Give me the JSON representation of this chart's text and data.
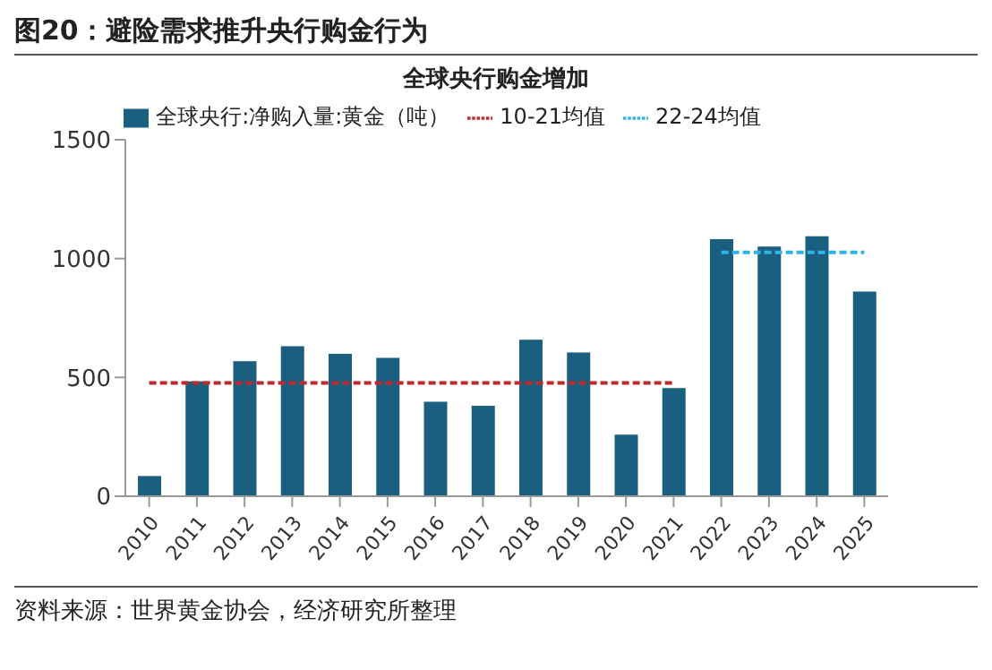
{
  "chart_data": {
    "type": "bar",
    "title": "图20：避险需求推升央行购金行为",
    "subtitle": "全球央行购金增加",
    "categories": [
      "2010",
      "2011",
      "2012",
      "2013",
      "2014",
      "2015",
      "2016",
      "2017",
      "2018",
      "2019",
      "2020",
      "2021",
      "2022",
      "2023",
      "2024",
      "2025"
    ],
    "series": [
      {
        "name": "全球央行:净购入量:黄金（吨）",
        "color": "#1a5e80",
        "values": [
          85,
          483,
          568,
          631,
          599,
          582,
          398,
          381,
          659,
          605,
          259,
          455,
          1082,
          1051,
          1094,
          861
        ]
      },
      {
        "name": "10-21均值",
        "type": "line",
        "color": "#c0282d",
        "line_style": "dashed",
        "values": [
          477,
          477,
          477,
          477,
          477,
          477,
          477,
          477,
          477,
          477,
          477,
          477,
          null,
          null,
          null,
          null
        ]
      },
      {
        "name": "22-24均值",
        "type": "line",
        "color": "#2fb4e6",
        "line_style": "dashed",
        "values": [
          null,
          null,
          null,
          null,
          null,
          null,
          null,
          null,
          null,
          null,
          null,
          null,
          1026,
          1026,
          1026,
          1026
        ]
      }
    ],
    "ylim": [
      0,
      1500
    ],
    "yticks": [
      0,
      500,
      1000,
      1500
    ],
    "grid": false,
    "legend": "top",
    "marker": "none",
    "annotations": [
      "资料来源：世界黄金协会，经济研究所整理"
    ]
  }
}
